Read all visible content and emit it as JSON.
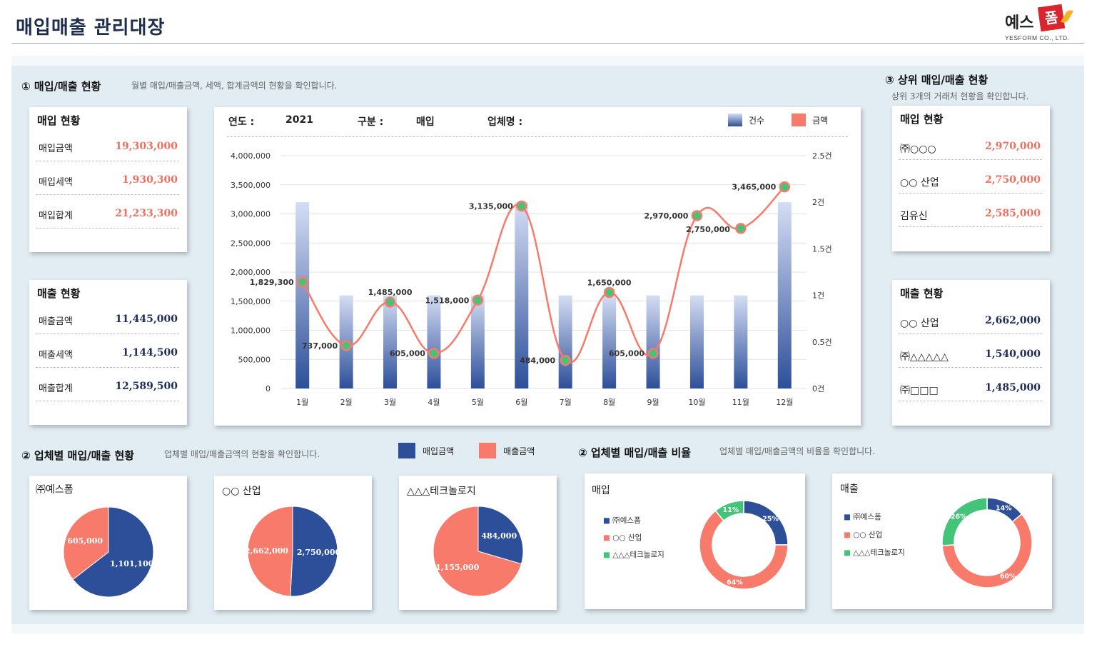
{
  "header": {
    "title": "매입매출 관리대장",
    "logo_text": "예스",
    "logo_mark": "폼",
    "logo_sub": "YESFORM CO., LTD."
  },
  "colors": {
    "navy": "#2d4f9a",
    "salmon": "#f87a6a",
    "green": "#43c479",
    "bar_top": "#d4ddf3",
    "bar_bottom": "#2d4f9a"
  },
  "section1": {
    "title": "① 매입/매출 현황",
    "desc": "월별 매입/매출금액, 세액, 합계금액의 현황을 확인합니다."
  },
  "purchase_status": {
    "title": "매입 현황",
    "rows": [
      {
        "label": "매입금액",
        "value": "19,303,000"
      },
      {
        "label": "매입세액",
        "value": "1,930,300"
      },
      {
        "label": "매입합계",
        "value": "21,233,300"
      }
    ]
  },
  "sales_status": {
    "title": "매출 현황",
    "rows": [
      {
        "label": "매출금액",
        "value": "11,445,000"
      },
      {
        "label": "매출세액",
        "value": "1,144,500"
      },
      {
        "label": "매출합계",
        "value": "12,589,500"
      }
    ]
  },
  "filters": {
    "year_label": "연도 :",
    "year_value": "2021",
    "type_label": "구분 :",
    "type_value": "매입",
    "vendor_label": "업체명 :",
    "vendor_value": ""
  },
  "section3": {
    "title": "③ 상위 매입/매출 현황",
    "desc": "상위 3개의 거래처 현황을 확인합니다."
  },
  "top_purchase": {
    "title": "매입 현황",
    "rows": [
      {
        "label": "㈜○○○",
        "value": "2,970,000"
      },
      {
        "label": "○○ 산업",
        "value": "2,750,000"
      },
      {
        "label": "김유신",
        "value": "2,585,000"
      }
    ]
  },
  "top_sales": {
    "title": "매출 현황",
    "rows": [
      {
        "label": "○○ 산업",
        "value": "2,662,000"
      },
      {
        "label": "㈜△△△△△",
        "value": "1,540,000"
      },
      {
        "label": "㈜□□□",
        "value": "1,485,000"
      }
    ]
  },
  "section2a": {
    "title": "② 업체별 매입/매출 현황",
    "desc": "업체별 매입/매출금액의 현황을 확인합니다."
  },
  "section2b": {
    "title": "② 업체별 매입/매출 비율",
    "desc": "업체별 매입/매출금액의 비율을 확인합니다."
  },
  "legend2": {
    "purchase": "매입금액",
    "sales": "매출금액"
  },
  "chart_data": [
    {
      "type": "bar+line",
      "title": "",
      "categories": [
        "1월",
        "2월",
        "3월",
        "4월",
        "5월",
        "6월",
        "7월",
        "8월",
        "9월",
        "10월",
        "11월",
        "12월"
      ],
      "series": [
        {
          "name": "건수",
          "axis": "right",
          "kind": "bar",
          "values": [
            2,
            1,
            1,
            1,
            1,
            2,
            1,
            1,
            1,
            1,
            1,
            2
          ]
        },
        {
          "name": "금액",
          "axis": "left",
          "kind": "line",
          "values": [
            1829300,
            737000,
            1485000,
            605000,
            1518000,
            3135000,
            484000,
            1650000,
            605000,
            2970000,
            2750000,
            3465000
          ],
          "labels": [
            "1,829,300",
            "737,000",
            "1,485,000",
            "605,000",
            "1,518,000",
            "3,135,000",
            "484,000",
            "1,650,000",
            "605,000",
            "2,970,000",
            "2,750,000",
            "3,465,000"
          ]
        }
      ],
      "ylim": [
        0,
        4000000
      ],
      "y_ticks": [
        "0",
        "500,000",
        "1,000,000",
        "1,500,000",
        "2,000,000",
        "2,500,000",
        "3,000,000",
        "3,500,000",
        "4,000,000"
      ],
      "y2lim": [
        0,
        2.5
      ],
      "y2_ticks": [
        "0건",
        "0.5건",
        "1건",
        "1.5건",
        "2건",
        "2.5건"
      ],
      "legend": [
        "건수",
        "금액"
      ]
    },
    {
      "type": "pie",
      "title": "㈜예스폼",
      "slices": [
        {
          "name": "매입금액",
          "value": 1101100,
          "label": "1,101,100"
        },
        {
          "name": "매출금액",
          "value": 605000,
          "label": "605,000"
        }
      ]
    },
    {
      "type": "pie",
      "title": "○○ 산업",
      "slices": [
        {
          "name": "매입금액",
          "value": 2750000,
          "label": "2,750,000"
        },
        {
          "name": "매출금액",
          "value": 2662000,
          "label": "2,662,000"
        }
      ]
    },
    {
      "type": "pie",
      "title": "△△△테크놀로지",
      "slices": [
        {
          "name": "매입금액",
          "value": 484000,
          "label": "484,000"
        },
        {
          "name": "매출금액",
          "value": 1155000,
          "label": "1,155,000"
        }
      ]
    },
    {
      "type": "donut",
      "title": "매입",
      "legend": [
        "㈜예스폼",
        "○○ 산업",
        "△△△테크놀로지"
      ],
      "values": [
        25,
        64,
        11
      ],
      "labels": [
        "25%",
        "64%",
        "11%"
      ]
    },
    {
      "type": "donut",
      "title": "매출",
      "legend": [
        "㈜예스폼",
        "○○ 산업",
        "△△△테크놀로지"
      ],
      "values": [
        14,
        60,
        26
      ],
      "labels": [
        "14%",
        "60%",
        "26%"
      ]
    }
  ]
}
